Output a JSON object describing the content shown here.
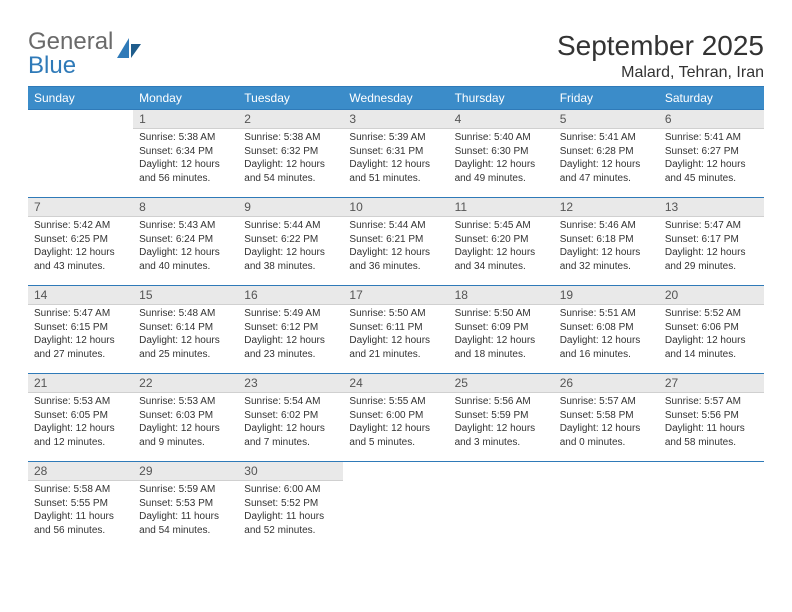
{
  "brand": {
    "part1": "General",
    "part2": "Blue"
  },
  "title": "September 2025",
  "location": "Malard, Tehran, Iran",
  "dayHeaders": [
    "Sunday",
    "Monday",
    "Tuesday",
    "Wednesday",
    "Thursday",
    "Friday",
    "Saturday"
  ],
  "colors": {
    "headerBg": "#3b8cc9",
    "headerText": "#ffffff",
    "divider": "#2f7ab8",
    "dayNumBg": "#e9e9e9",
    "brandGray": "#6a6a6a",
    "brandBlue": "#2f7ab8",
    "text": "#333333"
  },
  "weeks": [
    [
      {
        "num": "",
        "sunrise": "",
        "sunset": "",
        "daylight": ""
      },
      {
        "num": "1",
        "sunrise": "Sunrise: 5:38 AM",
        "sunset": "Sunset: 6:34 PM",
        "daylight": "Daylight: 12 hours and 56 minutes."
      },
      {
        "num": "2",
        "sunrise": "Sunrise: 5:38 AM",
        "sunset": "Sunset: 6:32 PM",
        "daylight": "Daylight: 12 hours and 54 minutes."
      },
      {
        "num": "3",
        "sunrise": "Sunrise: 5:39 AM",
        "sunset": "Sunset: 6:31 PM",
        "daylight": "Daylight: 12 hours and 51 minutes."
      },
      {
        "num": "4",
        "sunrise": "Sunrise: 5:40 AM",
        "sunset": "Sunset: 6:30 PM",
        "daylight": "Daylight: 12 hours and 49 minutes."
      },
      {
        "num": "5",
        "sunrise": "Sunrise: 5:41 AM",
        "sunset": "Sunset: 6:28 PM",
        "daylight": "Daylight: 12 hours and 47 minutes."
      },
      {
        "num": "6",
        "sunrise": "Sunrise: 5:41 AM",
        "sunset": "Sunset: 6:27 PM",
        "daylight": "Daylight: 12 hours and 45 minutes."
      }
    ],
    [
      {
        "num": "7",
        "sunrise": "Sunrise: 5:42 AM",
        "sunset": "Sunset: 6:25 PM",
        "daylight": "Daylight: 12 hours and 43 minutes."
      },
      {
        "num": "8",
        "sunrise": "Sunrise: 5:43 AM",
        "sunset": "Sunset: 6:24 PM",
        "daylight": "Daylight: 12 hours and 40 minutes."
      },
      {
        "num": "9",
        "sunrise": "Sunrise: 5:44 AM",
        "sunset": "Sunset: 6:22 PM",
        "daylight": "Daylight: 12 hours and 38 minutes."
      },
      {
        "num": "10",
        "sunrise": "Sunrise: 5:44 AM",
        "sunset": "Sunset: 6:21 PM",
        "daylight": "Daylight: 12 hours and 36 minutes."
      },
      {
        "num": "11",
        "sunrise": "Sunrise: 5:45 AM",
        "sunset": "Sunset: 6:20 PM",
        "daylight": "Daylight: 12 hours and 34 minutes."
      },
      {
        "num": "12",
        "sunrise": "Sunrise: 5:46 AM",
        "sunset": "Sunset: 6:18 PM",
        "daylight": "Daylight: 12 hours and 32 minutes."
      },
      {
        "num": "13",
        "sunrise": "Sunrise: 5:47 AM",
        "sunset": "Sunset: 6:17 PM",
        "daylight": "Daylight: 12 hours and 29 minutes."
      }
    ],
    [
      {
        "num": "14",
        "sunrise": "Sunrise: 5:47 AM",
        "sunset": "Sunset: 6:15 PM",
        "daylight": "Daylight: 12 hours and 27 minutes."
      },
      {
        "num": "15",
        "sunrise": "Sunrise: 5:48 AM",
        "sunset": "Sunset: 6:14 PM",
        "daylight": "Daylight: 12 hours and 25 minutes."
      },
      {
        "num": "16",
        "sunrise": "Sunrise: 5:49 AM",
        "sunset": "Sunset: 6:12 PM",
        "daylight": "Daylight: 12 hours and 23 minutes."
      },
      {
        "num": "17",
        "sunrise": "Sunrise: 5:50 AM",
        "sunset": "Sunset: 6:11 PM",
        "daylight": "Daylight: 12 hours and 21 minutes."
      },
      {
        "num": "18",
        "sunrise": "Sunrise: 5:50 AM",
        "sunset": "Sunset: 6:09 PM",
        "daylight": "Daylight: 12 hours and 18 minutes."
      },
      {
        "num": "19",
        "sunrise": "Sunrise: 5:51 AM",
        "sunset": "Sunset: 6:08 PM",
        "daylight": "Daylight: 12 hours and 16 minutes."
      },
      {
        "num": "20",
        "sunrise": "Sunrise: 5:52 AM",
        "sunset": "Sunset: 6:06 PM",
        "daylight": "Daylight: 12 hours and 14 minutes."
      }
    ],
    [
      {
        "num": "21",
        "sunrise": "Sunrise: 5:53 AM",
        "sunset": "Sunset: 6:05 PM",
        "daylight": "Daylight: 12 hours and 12 minutes."
      },
      {
        "num": "22",
        "sunrise": "Sunrise: 5:53 AM",
        "sunset": "Sunset: 6:03 PM",
        "daylight": "Daylight: 12 hours and 9 minutes."
      },
      {
        "num": "23",
        "sunrise": "Sunrise: 5:54 AM",
        "sunset": "Sunset: 6:02 PM",
        "daylight": "Daylight: 12 hours and 7 minutes."
      },
      {
        "num": "24",
        "sunrise": "Sunrise: 5:55 AM",
        "sunset": "Sunset: 6:00 PM",
        "daylight": "Daylight: 12 hours and 5 minutes."
      },
      {
        "num": "25",
        "sunrise": "Sunrise: 5:56 AM",
        "sunset": "Sunset: 5:59 PM",
        "daylight": "Daylight: 12 hours and 3 minutes."
      },
      {
        "num": "26",
        "sunrise": "Sunrise: 5:57 AM",
        "sunset": "Sunset: 5:58 PM",
        "daylight": "Daylight: 12 hours and 0 minutes."
      },
      {
        "num": "27",
        "sunrise": "Sunrise: 5:57 AM",
        "sunset": "Sunset: 5:56 PM",
        "daylight": "Daylight: 11 hours and 58 minutes."
      }
    ],
    [
      {
        "num": "28",
        "sunrise": "Sunrise: 5:58 AM",
        "sunset": "Sunset: 5:55 PM",
        "daylight": "Daylight: 11 hours and 56 minutes."
      },
      {
        "num": "29",
        "sunrise": "Sunrise: 5:59 AM",
        "sunset": "Sunset: 5:53 PM",
        "daylight": "Daylight: 11 hours and 54 minutes."
      },
      {
        "num": "30",
        "sunrise": "Sunrise: 6:00 AM",
        "sunset": "Sunset: 5:52 PM",
        "daylight": "Daylight: 11 hours and 52 minutes."
      },
      {
        "num": "",
        "sunrise": "",
        "sunset": "",
        "daylight": ""
      },
      {
        "num": "",
        "sunrise": "",
        "sunset": "",
        "daylight": ""
      },
      {
        "num": "",
        "sunrise": "",
        "sunset": "",
        "daylight": ""
      },
      {
        "num": "",
        "sunrise": "",
        "sunset": "",
        "daylight": ""
      }
    ]
  ]
}
